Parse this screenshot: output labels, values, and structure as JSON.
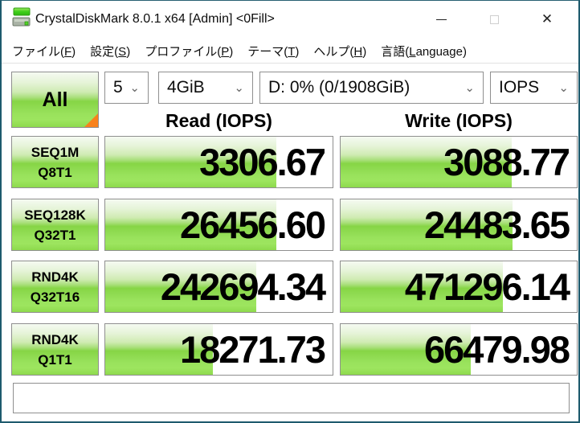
{
  "window": {
    "title": "CrystalDiskMark 8.0.1 x64 [Admin] <0Fill>",
    "close_glyph": "✕"
  },
  "menu": {
    "items": [
      {
        "prefix": "ファイル(",
        "key": "F",
        "suffix": ")"
      },
      {
        "prefix": "設定(",
        "key": "S",
        "suffix": ")"
      },
      {
        "prefix": "プロファイル(",
        "key": "P",
        "suffix": ")"
      },
      {
        "prefix": "テーマ(",
        "key": "T",
        "suffix": ")"
      },
      {
        "prefix": "ヘルプ(",
        "key": "H",
        "suffix": ")"
      },
      {
        "prefix": "言語(",
        "key": "L",
        "suffix": "anguage)"
      }
    ]
  },
  "controls": {
    "all_button_label": "All",
    "test_count": "5",
    "test_size": "4GiB",
    "target_drive": "D: 0% (0/1908GiB)",
    "unit": "IOPS",
    "chevron_glyph": "⌄"
  },
  "table": {
    "read_header": "Read (IOPS)",
    "write_header": "Write (IOPS)",
    "rows": [
      {
        "label_line1": "SEQ1M",
        "label_line2": "Q8T1",
        "read": "3306.67",
        "write": "3088.77",
        "read_bar": 75.4,
        "write_bar": 72.5
      },
      {
        "label_line1": "SEQ128K",
        "label_line2": "Q32T1",
        "read": "26456.60",
        "write": "24483.65",
        "read_bar": 75.2,
        "write_bar": 72.7
      },
      {
        "label_line1": "RND4K",
        "label_line2": "Q32T16",
        "read": "242694.34",
        "write": "471296.14",
        "read_bar": 66.3,
        "write_bar": 68.8
      },
      {
        "label_line1": "RND4K",
        "label_line2": "Q1T1",
        "read": "18271.73",
        "write": "66479.98",
        "read_bar": 47.4,
        "write_bar": 55.0
      }
    ]
  },
  "colors": {
    "accent_green_mid": "#86d545",
    "accent_green_light": "#f5faf1",
    "orange_corner": "#f8821c",
    "window_border": "#1e5a6d",
    "cell_border": "#8f8f8f"
  }
}
